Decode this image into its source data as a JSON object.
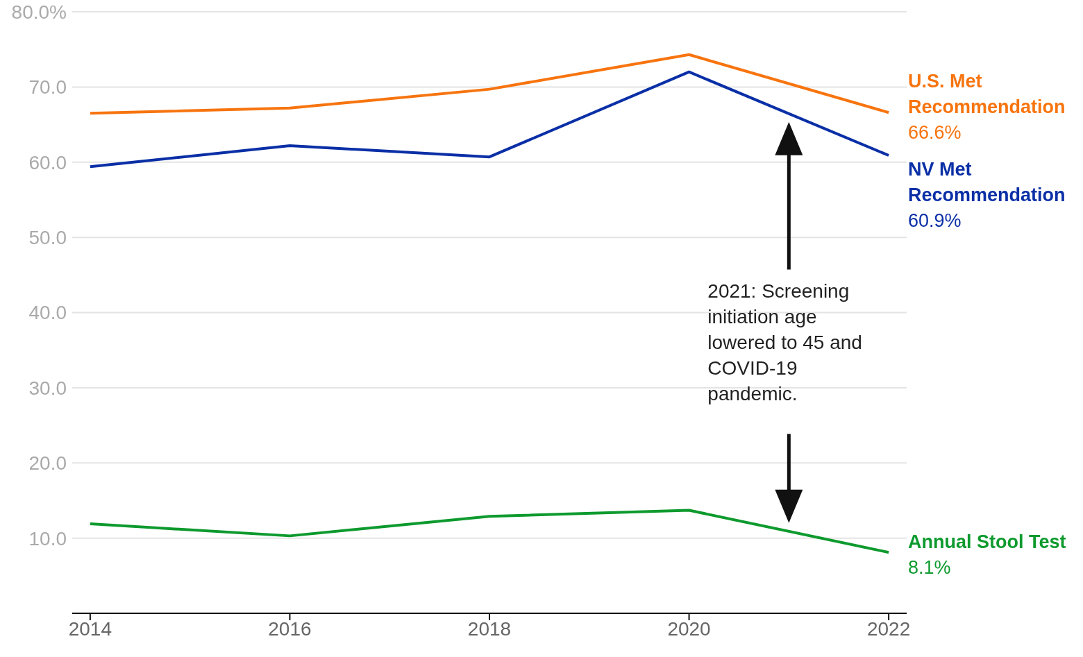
{
  "chart_data": {
    "type": "line",
    "x": [
      2014,
      2016,
      2018,
      2020,
      2022
    ],
    "xlim": [
      2013.82,
      2022.18
    ],
    "xticks": [
      2014,
      2016,
      2018,
      2020,
      2022
    ],
    "ylim": [
      0,
      80
    ],
    "yticks": [
      {
        "value": 0,
        "label": null
      },
      {
        "value": 10,
        "label": "10.0"
      },
      {
        "value": 20,
        "label": "20.0"
      },
      {
        "value": 30,
        "label": "30.0"
      },
      {
        "value": 40,
        "label": "40.0"
      },
      {
        "value": 50,
        "label": "50.0"
      },
      {
        "value": 60,
        "label": "60.0"
      },
      {
        "value": 70,
        "label": "70.0"
      },
      {
        "value": 80,
        "label": "80.0%"
      }
    ],
    "grid": "y",
    "series": [
      {
        "name": "U.S. Met Recommendation",
        "color": "#f7740f",
        "values": [
          66.5,
          67.2,
          69.7,
          74.3,
          66.6
        ],
        "value_labels": [
          null,
          null,
          null,
          null,
          "66.6%"
        ]
      },
      {
        "name": "NV Met Recommendation",
        "color": "#0a2fa6",
        "values": [
          59.4,
          62.2,
          60.7,
          72.0,
          60.9
        ],
        "value_labels": [
          null,
          null,
          null,
          null,
          "60.9%"
        ]
      },
      {
        "name": "Annual Stool Test",
        "color": "#0e9a2e",
        "values": [
          11.9,
          10.3,
          12.9,
          13.7,
          8.1
        ],
        "value_labels": [
          null,
          null,
          null,
          null,
          "8.1%"
        ]
      }
    ],
    "annotations": [
      "2021: Screening initiation age lowered to 45 and COVID-19 pandemic."
    ]
  }
}
